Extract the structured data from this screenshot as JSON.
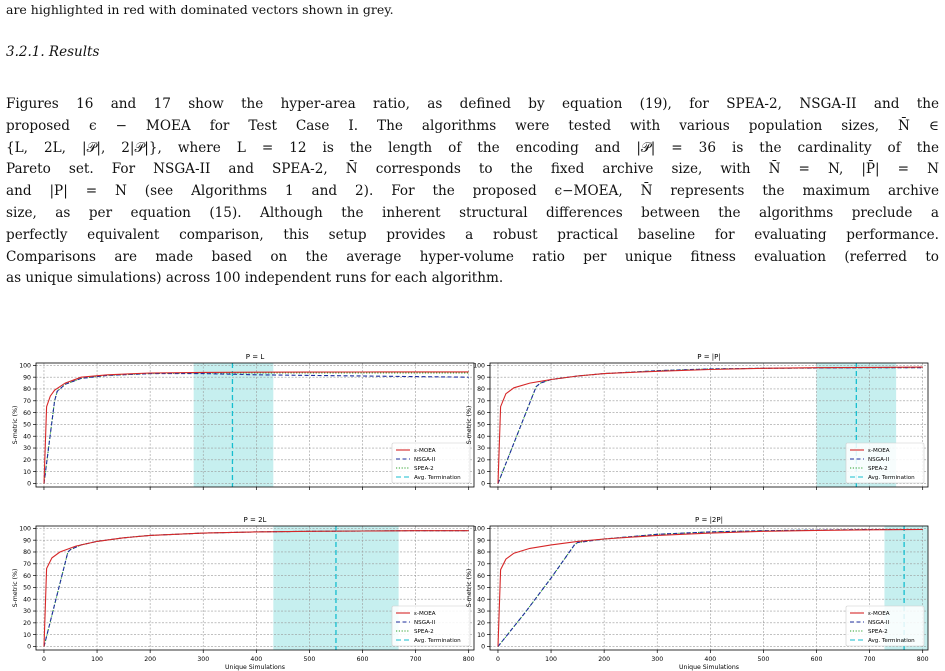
{
  "caption_tail": "are highlighted in red with dominated vectors shown in grey.",
  "subsection": "3.2.1.  Results",
  "paragraph_lines": [
    "Figures 16 and 17 show the hyper-area ratio, as defined by equation (19), for SPEA-2, NSGA-II and the",
    "proposed ϵ − MOEA for Test Case I. The algorithms were tested with various population sizes, N̄ ∈",
    "{L, 2L, |𝒫|, 2|𝒫|}, where L = 12 is the length of the encoding and |𝒫| = 36 is the cardinality of the",
    "Pareto set. For NSGA-II and SPEA-2, N̄ corresponds to the fixed archive size, with N̄ = N, |P̄| = N",
    "and |P| = N (see Algorithms 1 and 2). For the proposed ϵ−MOEA, N̄ represents the maximum archive",
    "size, as per equation (15). Although the inherent structural differences between the algorithms preclude a",
    "perfectly equivalent comparison, this setup provides a robust practical baseline for evaluating performance.",
    "Comparisons are made based on the average hyper-volume ratio per unique fitness evaluation (referred to",
    "as unique simulations) across 100 independent runs for each algorithm."
  ],
  "chart_data": [
    {
      "type": "line",
      "title": "P = L",
      "xlabel": "",
      "ylabel": "S-metric (%)",
      "xlim": [
        -15,
        810
      ],
      "ylim": [
        -3,
        102
      ],
      "yticks": [
        0,
        10,
        20,
        30,
        40,
        50,
        60,
        70,
        80,
        90,
        100
      ],
      "xticks": [],
      "grid": true,
      "legend_position": "lower-right",
      "termination": {
        "mean": 355,
        "band": [
          282,
          432
        ]
      },
      "series": [
        {
          "name": "ε-MOEA",
          "style": "solid",
          "color": "#d62728",
          "x": [
            0,
            5,
            12,
            20,
            40,
            70,
            120,
            200,
            300,
            400,
            500,
            600,
            700,
            800
          ],
          "y": [
            0,
            65,
            74,
            79,
            85,
            90,
            92,
            93.5,
            94,
            94.2,
            94.3,
            94.4,
            94.5,
            94.5
          ]
        },
        {
          "name": "NSGA-II",
          "style": "dashed",
          "color": "#1f2f9e",
          "x": [
            0,
            20,
            25,
            40,
            70,
            120,
            200,
            300,
            355,
            400,
            500,
            600,
            700,
            800
          ],
          "y": [
            0,
            70,
            78,
            84,
            89,
            91.5,
            93,
            93,
            92.5,
            92,
            91.5,
            91,
            90.5,
            90
          ]
        },
        {
          "name": "SPEA-2",
          "style": "dotted",
          "color": "#2ca02c",
          "x": [
            0,
            20,
            25,
            40,
            70,
            120,
            200,
            300,
            400,
            500,
            600,
            700,
            800
          ],
          "y": [
            0,
            70,
            78,
            84,
            89,
            91.5,
            93,
            93.5,
            93.5,
            93.5,
            93.5,
            93.5,
            93.5
          ]
        }
      ]
    },
    {
      "type": "line",
      "title": "P = |P|",
      "xlabel": "",
      "ylabel": "S-metric (%)",
      "xlim": [
        -15,
        810
      ],
      "ylim": [
        -3,
        102
      ],
      "yticks": [
        0,
        10,
        20,
        30,
        40,
        50,
        60,
        70,
        80,
        90,
        100
      ],
      "xticks": [],
      "grid": true,
      "legend_position": "lower-right",
      "termination": {
        "mean": 675,
        "band": [
          600,
          750
        ]
      },
      "series": [
        {
          "name": "ε-MOEA",
          "style": "solid",
          "color": "#d62728",
          "x": [
            0,
            5,
            15,
            30,
            60,
            100,
            150,
            200,
            300,
            400,
            500,
            600,
            700,
            800
          ],
          "y": [
            0,
            65,
            76,
            81,
            85,
            88,
            91,
            93,
            95,
            96.5,
            97.5,
            98,
            98.3,
            98.5
          ]
        },
        {
          "name": "NSGA-II",
          "style": "dashed",
          "color": "#1f2f9e",
          "x": [
            0,
            72,
            80,
            100,
            150,
            200,
            300,
            400,
            500,
            600,
            700,
            800
          ],
          "y": [
            0,
            82,
            85,
            88,
            91,
            93,
            95.5,
            97,
            97.5,
            97.8,
            98,
            98
          ]
        },
        {
          "name": "SPEA-2",
          "style": "dotted",
          "color": "#2ca02c",
          "x": [
            0,
            72,
            80,
            100,
            150,
            200,
            300,
            400,
            500,
            600,
            700,
            800
          ],
          "y": [
            0,
            82,
            85,
            88,
            91,
            93,
            95.5,
            97,
            97.5,
            97.8,
            98,
            98
          ]
        }
      ]
    },
    {
      "type": "line",
      "title": "P = 2L",
      "xlabel": "Unique Simulations",
      "ylabel": "S-metric (%)",
      "xlim": [
        -15,
        810
      ],
      "ylim": [
        -3,
        102
      ],
      "yticks": [
        0,
        10,
        20,
        30,
        40,
        50,
        60,
        70,
        80,
        90,
        100
      ],
      "xticks": [
        0,
        100,
        200,
        300,
        400,
        500,
        600,
        700,
        800
      ],
      "grid": true,
      "legend_position": "lower-right",
      "termination": {
        "mean": 550,
        "band": [
          432,
          668
        ]
      },
      "series": [
        {
          "name": "ε-MOEA",
          "style": "solid",
          "color": "#d62728",
          "x": [
            0,
            5,
            15,
            30,
            60,
            100,
            150,
            200,
            300,
            400,
            500,
            600,
            700,
            800
          ],
          "y": [
            0,
            66,
            75,
            80,
            85,
            89,
            92,
            94,
            96,
            97,
            97.5,
            97.8,
            98,
            98
          ]
        },
        {
          "name": "NSGA-II",
          "style": "dashed",
          "color": "#1f2f9e",
          "x": [
            0,
            45,
            50,
            70,
            100,
            150,
            200,
            300,
            400,
            500,
            600,
            700,
            800
          ],
          "y": [
            0,
            80,
            82,
            86,
            89,
            92,
            94,
            96,
            97,
            97.5,
            97.8,
            98,
            98
          ]
        },
        {
          "name": "SPEA-2",
          "style": "dotted",
          "color": "#2ca02c",
          "x": [
            0,
            45,
            50,
            70,
            100,
            150,
            200,
            300,
            400,
            500,
            600,
            700,
            800
          ],
          "y": [
            0,
            80,
            82,
            86,
            89,
            92,
            94,
            96,
            97,
            97.5,
            97.8,
            98,
            98
          ]
        }
      ]
    },
    {
      "type": "line",
      "title": "P = |2P|",
      "xlabel": "Unique Simulations",
      "ylabel": "S-metric (%)",
      "xlim": [
        -15,
        810
      ],
      "ylim": [
        -3,
        102
      ],
      "yticks": [
        0,
        10,
        20,
        30,
        40,
        50,
        60,
        70,
        80,
        90,
        100
      ],
      "xticks": [
        0,
        100,
        200,
        300,
        400,
        500,
        600,
        700,
        800
      ],
      "grid": true,
      "legend_position": "lower-right",
      "termination": {
        "mean": 765,
        "band": [
          728,
          810
        ]
      },
      "series": [
        {
          "name": "ε-MOEA",
          "style": "solid",
          "color": "#d62728",
          "x": [
            0,
            5,
            15,
            30,
            60,
            100,
            150,
            200,
            300,
            400,
            500,
            600,
            700,
            800
          ],
          "y": [
            0,
            65,
            74,
            79,
            83,
            86,
            89,
            91,
            94,
            96,
            97.5,
            98.3,
            98.8,
            99
          ]
        },
        {
          "name": "NSGA-II",
          "style": "dashed",
          "color": "#1f2f9e",
          "x": [
            0,
            50,
            100,
            144,
            150,
            200,
            300,
            400,
            500,
            600,
            700,
            800
          ],
          "y": [
            0,
            28,
            58,
            86,
            88,
            91,
            95,
            97,
            98,
            98.5,
            99,
            99
          ]
        },
        {
          "name": "SPEA-2",
          "style": "dotted",
          "color": "#2ca02c",
          "x": [
            0,
            50,
            100,
            144,
            150,
            200,
            300,
            400,
            500,
            600,
            700,
            800
          ],
          "y": [
            0,
            28,
            58,
            86,
            88,
            91,
            95,
            97,
            98,
            98.5,
            99,
            99
          ]
        }
      ]
    }
  ],
  "legend_termination_label": "Avg. Termination",
  "colors": {
    "termination_line": "#17becf",
    "termination_band": "#c6efef",
    "grid": "#9a9a9a"
  }
}
